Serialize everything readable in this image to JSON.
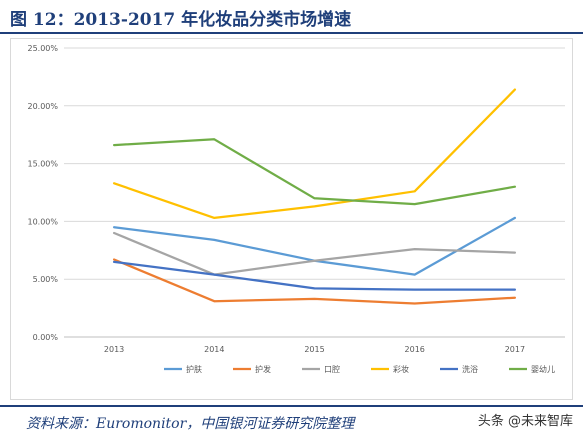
{
  "header": {
    "title": "图 12：2013-2017 年化妆品分类市场增速"
  },
  "footer": {
    "source": "资料来源：Euromonitor，中国银河证券研究院整理"
  },
  "watermark": {
    "text": "头条 @未来智库"
  },
  "chart_data": {
    "type": "line",
    "x": [
      "2013",
      "2014",
      "2015",
      "2016",
      "2017"
    ],
    "yticks": [
      "0.00%",
      "5.00%",
      "10.00%",
      "15.00%",
      "20.00%",
      "25.00%"
    ],
    "ylim": [
      0,
      25
    ],
    "grid": true,
    "legend_position": "bottom",
    "series": [
      {
        "name": "护肤",
        "color": "#5b9bd5",
        "values": [
          9.5,
          8.4,
          6.6,
          5.4,
          10.3
        ]
      },
      {
        "name": "护发",
        "color": "#ed7d31",
        "values": [
          6.7,
          3.1,
          3.3,
          2.9,
          3.4
        ]
      },
      {
        "name": "口腔",
        "color": "#a5a5a5",
        "values": [
          9.0,
          5.4,
          6.6,
          7.6,
          7.3
        ]
      },
      {
        "name": "彩妆",
        "color": "#ffc000",
        "values": [
          13.3,
          10.3,
          11.3,
          12.6,
          21.4
        ]
      },
      {
        "name": "洗浴",
        "color": "#4472c4",
        "values": [
          6.5,
          5.4,
          4.2,
          4.1,
          4.1
        ]
      },
      {
        "name": "婴幼儿",
        "color": "#70ad47",
        "values": [
          16.6,
          17.1,
          12.0,
          11.5,
          13.0
        ]
      }
    ]
  }
}
